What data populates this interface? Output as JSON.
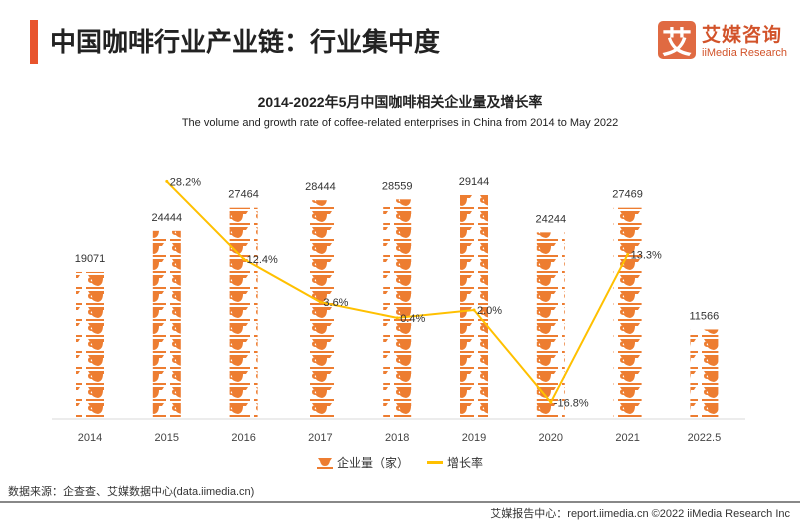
{
  "header": {
    "title": "中国咖啡行业产业链：行业集中度"
  },
  "logo": {
    "mark": "艾",
    "cn": "艾媒咨询",
    "en": "iiMedia Research"
  },
  "chart_data": {
    "type": "bar",
    "title": "2014-2022年5月中国咖啡相关企业量及增长率",
    "subtitle": "The volume and growth rate of coffee-related enterprises in China from 2014 to May 2022",
    "categories": [
      "2014",
      "2015",
      "2016",
      "2017",
      "2018",
      "2019",
      "2020",
      "2021",
      "2022.5"
    ],
    "series": [
      {
        "name": "企业量（家）",
        "type": "pictograph-bar",
        "values": [
          19071,
          24444,
          27464,
          28444,
          28559,
          29144,
          24244,
          27469,
          11566
        ],
        "color": "#ed7d31",
        "ylim": [
          0,
          35000
        ]
      },
      {
        "name": "增长率",
        "type": "line",
        "values": [
          null,
          28.2,
          12.4,
          3.6,
          0.4,
          2.0,
          -16.8,
          13.3,
          null
        ],
        "labels": [
          "",
          "28.2%",
          "12.4%",
          "3.6%",
          "0.4%",
          "2.0%",
          "-16.8%",
          "13.3%",
          ""
        ],
        "color": "#ffc000",
        "ylim": [
          -20,
          34.6
        ]
      }
    ],
    "legend": "bottom",
    "grid": false
  },
  "source": "数据来源：企查查、艾媒数据中心(data.iimedia.cn)",
  "footer": "艾媒报告中心：report.iimedia.cn  ©2022  iiMedia Research  Inc"
}
